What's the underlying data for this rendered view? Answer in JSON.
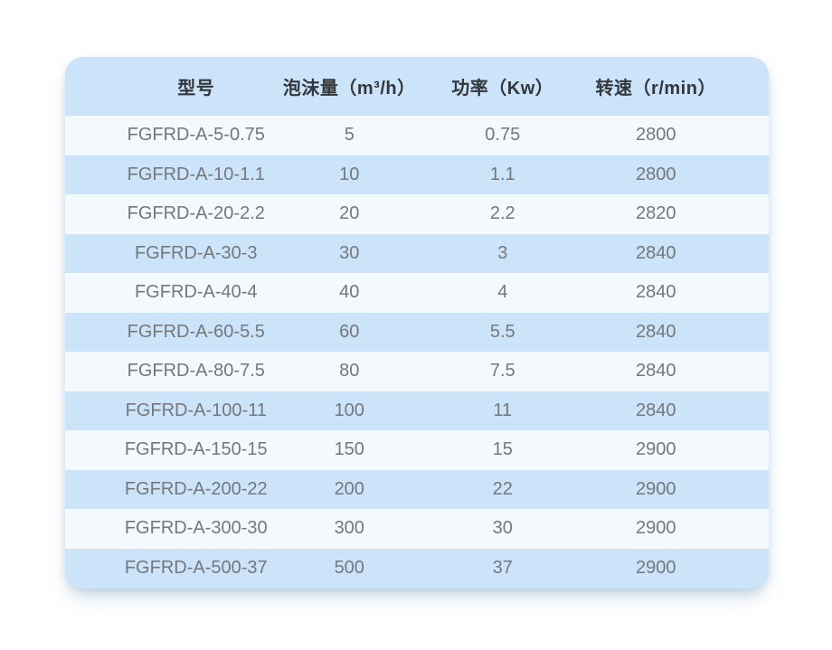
{
  "theme": {
    "page_bg": "#ffffff",
    "card_bg": "#cbe4f9",
    "row_alt_bg": "#f3f9fd",
    "header_text": "#33363a",
    "body_text": "#74777b"
  },
  "table": {
    "columns": [
      "型号",
      "泡沫量（m³/h）",
      "功率（Kw）",
      "转速（r/min）"
    ],
    "rows": [
      {
        "model": "FGFRD-A-5-0.75",
        "foam": "5",
        "power": "0.75",
        "speed": "2800"
      },
      {
        "model": "FGFRD-A-10-1.1",
        "foam": "10",
        "power": "1.1",
        "speed": "2800"
      },
      {
        "model": "FGFRD-A-20-2.2",
        "foam": "20",
        "power": "2.2",
        "speed": "2820"
      },
      {
        "model": "FGFRD-A-30-3",
        "foam": "30",
        "power": "3",
        "speed": "2840"
      },
      {
        "model": "FGFRD-A-40-4",
        "foam": "40",
        "power": "4",
        "speed": "2840"
      },
      {
        "model": "FGFRD-A-60-5.5",
        "foam": "60",
        "power": "5.5",
        "speed": "2840"
      },
      {
        "model": "FGFRD-A-80-7.5",
        "foam": "80",
        "power": "7.5",
        "speed": "2840"
      },
      {
        "model": "FGFRD-A-100-11",
        "foam": "100",
        "power": "11",
        "speed": "2840"
      },
      {
        "model": "FGFRD-A-150-15",
        "foam": "150",
        "power": "15",
        "speed": "2900"
      },
      {
        "model": "FGFRD-A-200-22",
        "foam": "200",
        "power": "22",
        "speed": "2900"
      },
      {
        "model": "FGFRD-A-300-30",
        "foam": "300",
        "power": "30",
        "speed": "2900"
      },
      {
        "model": "FGFRD-A-500-37",
        "foam": "500",
        "power": "37",
        "speed": "2900"
      }
    ]
  },
  "chart_data": {
    "type": "table",
    "title": "",
    "columns": [
      "型号",
      "泡沫量（m³/h）",
      "功率（Kw）",
      "转速（r/min）"
    ],
    "rows": [
      [
        "FGFRD-A-5-0.75",
        5,
        0.75,
        2800
      ],
      [
        "FGFRD-A-10-1.1",
        10,
        1.1,
        2800
      ],
      [
        "FGFRD-A-20-2.2",
        20,
        2.2,
        2820
      ],
      [
        "FGFRD-A-30-3",
        30,
        3,
        2840
      ],
      [
        "FGFRD-A-40-4",
        40,
        4,
        2840
      ],
      [
        "FGFRD-A-60-5.5",
        60,
        5.5,
        2840
      ],
      [
        "FGFRD-A-80-7.5",
        80,
        7.5,
        2840
      ],
      [
        "FGFRD-A-100-11",
        100,
        11,
        2840
      ],
      [
        "FGFRD-A-150-15",
        150,
        15,
        2900
      ],
      [
        "FGFRD-A-200-22",
        200,
        22,
        2900
      ],
      [
        "FGFRD-A-300-30",
        300,
        30,
        2900
      ],
      [
        "FGFRD-A-500-37",
        500,
        37,
        2900
      ]
    ],
    "layout_hints": {
      "striped": true,
      "header_position": "top",
      "grid": false
    }
  }
}
